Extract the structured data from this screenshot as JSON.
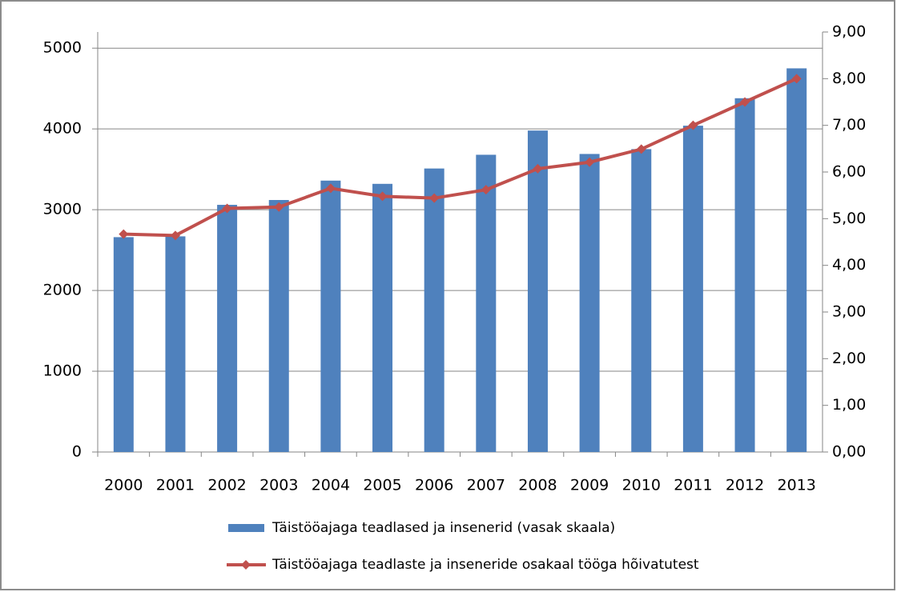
{
  "chart_data": {
    "type": "bar-line",
    "categories": [
      "2000",
      "2001",
      "2002",
      "2003",
      "2004",
      "2005",
      "2006",
      "2007",
      "2008",
      "2009",
      "2010",
      "2011",
      "2012",
      "2013"
    ],
    "series": [
      {
        "name": "Täistööajaga teadlased ja insenerid (vasak skaala)",
        "type": "bar",
        "color": "#4f81bd",
        "values": [
          2660,
          2670,
          3060,
          3120,
          3360,
          3320,
          3510,
          3680,
          3980,
          3690,
          3750,
          4040,
          4380,
          4750
        ]
      },
      {
        "name": "Täistööajaga teadlaste ja inseneride osakaal tööga hõivatutest",
        "type": "line",
        "axis": "y2",
        "color": "#c0504d",
        "values": [
          4.67,
          4.64,
          5.22,
          5.25,
          5.65,
          5.48,
          5.44,
          5.62,
          6.07,
          6.21,
          6.49,
          7.0,
          7.5,
          8.0
        ]
      }
    ],
    "ylim": [
      0,
      5200
    ],
    "yticks": [
      0,
      1000,
      2000,
      3000,
      4000,
      5000
    ],
    "y2lim": [
      0,
      9
    ],
    "y2ticks": [
      {
        "value": 0,
        "label": "0,00"
      },
      {
        "value": 1,
        "label": "1,00"
      },
      {
        "value": 2,
        "label": "2,00"
      },
      {
        "value": 3,
        "label": "3,00"
      },
      {
        "value": 4,
        "label": "4,00"
      },
      {
        "value": 5,
        "label": "5,00"
      },
      {
        "value": 6,
        "label": "6,00"
      },
      {
        "value": 7,
        "label": "7,00"
      },
      {
        "value": 8,
        "label": "8,00"
      },
      {
        "value": 9,
        "label": "9,00"
      }
    ],
    "grid": true,
    "legend": "bottom"
  }
}
